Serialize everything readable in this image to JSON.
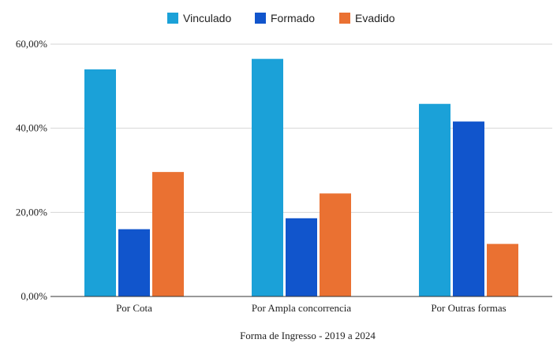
{
  "chart_data": {
    "type": "bar",
    "title": "",
    "xlabel": "Forma de Ingresso - 2019 a 2024",
    "ylabel": "",
    "categories": [
      "Por Cota",
      "Por Ampla concorrencia",
      "Por Outras formas"
    ],
    "series": [
      {
        "name": "Vinculado",
        "color": "#1ba1d8",
        "values": [
          54.0,
          56.5,
          45.8
        ]
      },
      {
        "name": "Formado",
        "color": "#1155cc",
        "values": [
          16.0,
          18.6,
          41.6
        ]
      },
      {
        "name": "Evadido",
        "color": "#ea7132",
        "values": [
          29.6,
          24.5,
          12.5
        ]
      }
    ],
    "ylim": [
      0,
      60
    ],
    "yticks": [
      {
        "value": 0,
        "label": "0,00%"
      },
      {
        "value": 20,
        "label": "20,00%"
      },
      {
        "value": 40,
        "label": "40,00%"
      },
      {
        "value": 60,
        "label": "60,00%"
      }
    ],
    "grid": true,
    "legend": "top-center"
  }
}
